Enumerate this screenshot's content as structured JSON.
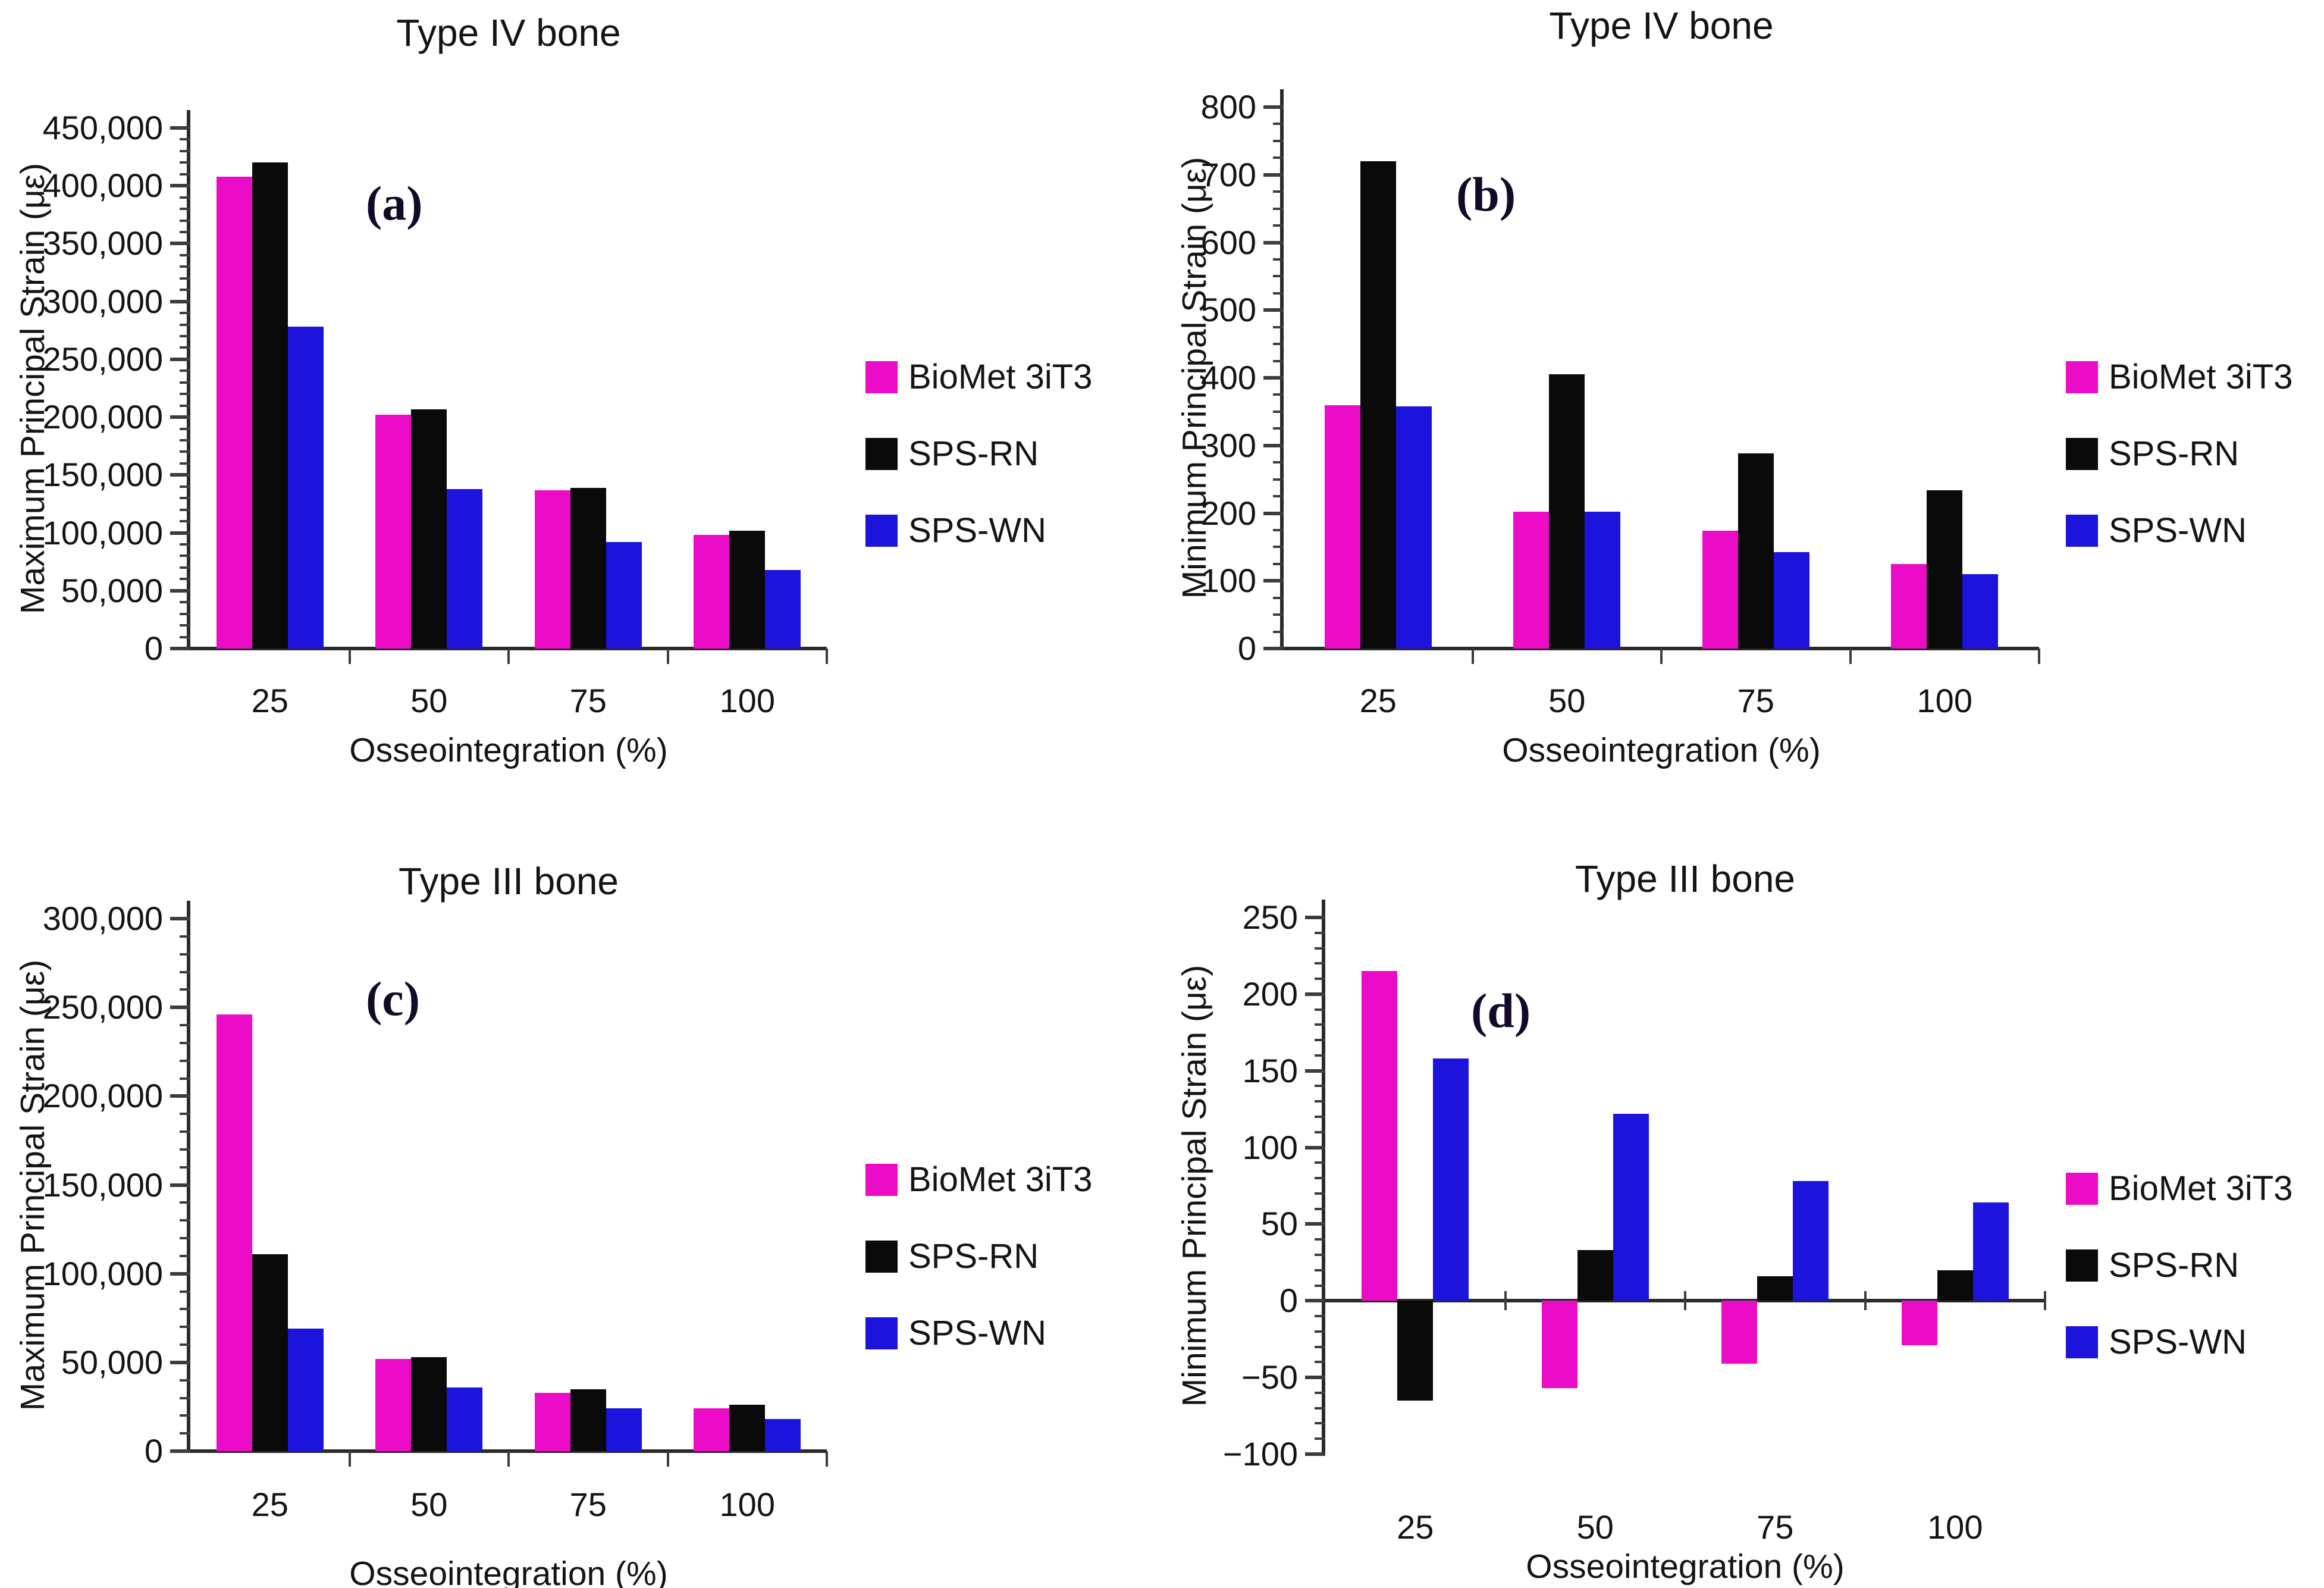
{
  "figure_title": "",
  "chart_data": [
    {
      "id": "a",
      "type": "bar",
      "panel_letter": "(a)",
      "title": "Type IV bone",
      "xlabel": "Osseointegration (%)",
      "ylabel": "Maximum Principal Strain (με)",
      "categories": [
        "25",
        "50",
        "75",
        "100"
      ],
      "series": [
        {
          "name": "BioMet 3iT3",
          "color": "#EC0BC6",
          "values": [
            408000,
            202000,
            137000,
            98000
          ]
        },
        {
          "name": "SPS-RN",
          "color": "#0A0A0A",
          "values": [
            420000,
            207000,
            139000,
            102000
          ]
        },
        {
          "name": "SPS-WN",
          "color": "#1C13DC",
          "values": [
            278000,
            138000,
            92000,
            68000
          ]
        }
      ],
      "ylim": [
        0,
        450000
      ],
      "ytick_step": 50000,
      "ytick_labels": [
        "450,000",
        "400,000",
        "350,000",
        "300,000",
        "250,000",
        "200,000",
        "150,000",
        "100,000",
        "50,000",
        "0"
      ],
      "minor_ticks_per_interval": 4,
      "grid": false,
      "legend_position": "right"
    },
    {
      "id": "b",
      "type": "bar",
      "panel_letter": "(b)",
      "title": "Type IV bone",
      "xlabel": "Osseointegration (%)",
      "ylabel": "Minimum Principal Strain (με)",
      "categories": [
        "25",
        "50",
        "75",
        "100"
      ],
      "series": [
        {
          "name": "BioMet 3iT3",
          "color": "#EC0BC6",
          "values": [
            360,
            202,
            174,
            125
          ]
        },
        {
          "name": "SPS-RN",
          "color": "#0A0A0A",
          "values": [
            720,
            405,
            288,
            234
          ]
        },
        {
          "name": "SPS-WN",
          "color": "#1C13DC",
          "values": [
            358,
            202,
            142,
            110
          ]
        }
      ],
      "ylim": [
        0,
        800
      ],
      "ytick_step": 100,
      "ytick_labels": [
        "800",
        "700",
        "600",
        "500",
        "400",
        "300",
        "200",
        "100",
        "0"
      ],
      "minor_ticks_per_interval": 3,
      "grid": false,
      "legend_position": "right"
    },
    {
      "id": "c",
      "type": "bar",
      "panel_letter": "(c)",
      "title": "Type III bone",
      "xlabel": "Osseointegration (%)",
      "ylabel": "Maximum Principal Strain (με)",
      "categories": [
        "25",
        "50",
        "75",
        "100"
      ],
      "series": [
        {
          "name": "BioMet 3iT3",
          "color": "#EC0BC6",
          "values": [
            246000,
            52000,
            33000,
            24000
          ]
        },
        {
          "name": "SPS-RN",
          "color": "#0A0A0A",
          "values": [
            111000,
            53000,
            35000,
            26000
          ]
        },
        {
          "name": "SPS-WN",
          "color": "#1C13DC",
          "values": [
            69000,
            36000,
            24000,
            18000
          ]
        }
      ],
      "ylim": [
        0,
        300000
      ],
      "ytick_step": 50000,
      "ytick_labels": [
        "300,000",
        "250,000",
        "200,000",
        "150,000",
        "100,000",
        "50,000",
        "0"
      ],
      "minor_ticks_per_interval": 4,
      "grid": false,
      "legend_position": "right"
    },
    {
      "id": "d",
      "type": "bar",
      "panel_letter": "(d)",
      "title": "Type III bone",
      "xlabel": "Osseointegration (%)",
      "ylabel": "Minimum Principal Strain (με)",
      "categories": [
        "25",
        "50",
        "75",
        "100"
      ],
      "series": [
        {
          "name": "BioMet 3iT3",
          "color": "#EC0BC6",
          "values": [
            215,
            -57,
            -41,
            -29
          ]
        },
        {
          "name": "SPS-RN",
          "color": "#0A0A0A",
          "values": [
            -65,
            33,
            16,
            20
          ]
        },
        {
          "name": "SPS-WN",
          "color": "#1C13DC",
          "values": [
            158,
            122,
            78,
            64
          ]
        }
      ],
      "ylim": [
        -100,
        250
      ],
      "ytick_step": 50,
      "ytick_labels": [
        "250",
        "200",
        "150",
        "100",
        "50",
        "0",
        "−50",
        "−100"
      ],
      "minor_ticks_per_interval": 4,
      "grid": false,
      "legend_position": "right"
    }
  ]
}
